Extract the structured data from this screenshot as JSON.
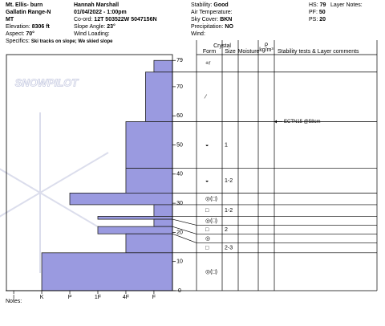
{
  "header": {
    "location": [
      "Mt. Ellis- burn",
      "Gallatin Range-N",
      "MT"
    ],
    "fields_left": [
      {
        "label": "Elevation:",
        "value": "8306 ft"
      },
      {
        "label": "Aspect:",
        "value": "70°"
      }
    ],
    "specifics": {
      "label": "Specifics:",
      "value": "Ski tracks on slope; We skied slope"
    },
    "observer": "Hannah Marshall",
    "datetime": "01/04/2022 - 1:00pm",
    "fields_mid": [
      {
        "label": "Co-ord:",
        "value": "12T 503522W 5047156N"
      },
      {
        "label": "Slope Angle:",
        "value": "23°"
      },
      {
        "label": "Wind Loading:"
      }
    ],
    "fields_right": [
      {
        "label": "Stability:",
        "value": "Good"
      },
      {
        "label": "Air Temperature:"
      },
      {
        "label": "Sky Cover:",
        "value": "BKN"
      },
      {
        "label": "Precipitation:",
        "value": "NO"
      },
      {
        "label": "Wind:"
      }
    ],
    "fields_far": [
      {
        "label": "HS:",
        "value": "79"
      },
      {
        "label": "PF:",
        "value": "50"
      },
      {
        "label": "PS:",
        "value": "20"
      }
    ],
    "layer_notes": "Layer Notes:"
  },
  "table": {
    "crystal": "Crystal",
    "form": "Form",
    "size": "Size",
    "moisture": "Moisture",
    "density": "ρ",
    "density_unit": "kg/m³",
    "comments": "Stability tests & Layer comments"
  },
  "watermark": "SNOWPILOT",
  "notes": "Notes:",
  "chart_data": {
    "type": "hardness-profile",
    "ylim": [
      0,
      81
    ],
    "yticks": [
      0,
      10,
      20,
      30,
      40,
      50,
      60,
      70,
      79
    ],
    "xlim": [
      6.26,
      0.34
    ],
    "xticks": [
      {
        "value": 6,
        "label": "I"
      },
      {
        "value": 5,
        "label": "K"
      },
      {
        "value": 4,
        "label": "P"
      },
      {
        "value": 3,
        "label": "1F"
      },
      {
        "value": 2,
        "label": "4F"
      },
      {
        "value": 1,
        "label": "F"
      }
    ],
    "color": "#9a9ae0",
    "layers": [
      {
        "top": 79,
        "bottom": 75,
        "hardness": 1,
        "form": "+r"
      },
      {
        "top": 75,
        "bottom": 58,
        "hardness": 1.3,
        "form": "⁄"
      },
      {
        "top": 58,
        "bottom": 42,
        "hardness": 2,
        "form": "◒",
        "size": "1"
      },
      {
        "top": 42,
        "bottom": 33.5,
        "hardness": 2,
        "form": "◒",
        "size": "1-2"
      },
      {
        "top": 33.5,
        "bottom": 29.5,
        "hardness": 4,
        "form": "◎(□)"
      },
      {
        "top": 29.5,
        "bottom": 25.5,
        "hardness": 1,
        "form": "□",
        "size": "1-2"
      },
      {
        "top": 25.5,
        "bottom": 24.5,
        "hardness": 3,
        "form": "◎(□)"
      },
      {
        "top": 24.5,
        "bottom": 22,
        "hardness": 1,
        "form": "□",
        "size": "2"
      },
      {
        "top": 22,
        "bottom": 19.5,
        "hardness": 3,
        "form": "◎"
      },
      {
        "top": 19.5,
        "bottom": 13,
        "hardness": 2,
        "form": "□",
        "size": "2-3"
      },
      {
        "top": 13,
        "bottom": 0,
        "hardness": 5,
        "form": "◎(□)"
      }
    ],
    "tests": [
      {
        "depth": 58,
        "label": "ECTN15 @58cm"
      }
    ]
  }
}
